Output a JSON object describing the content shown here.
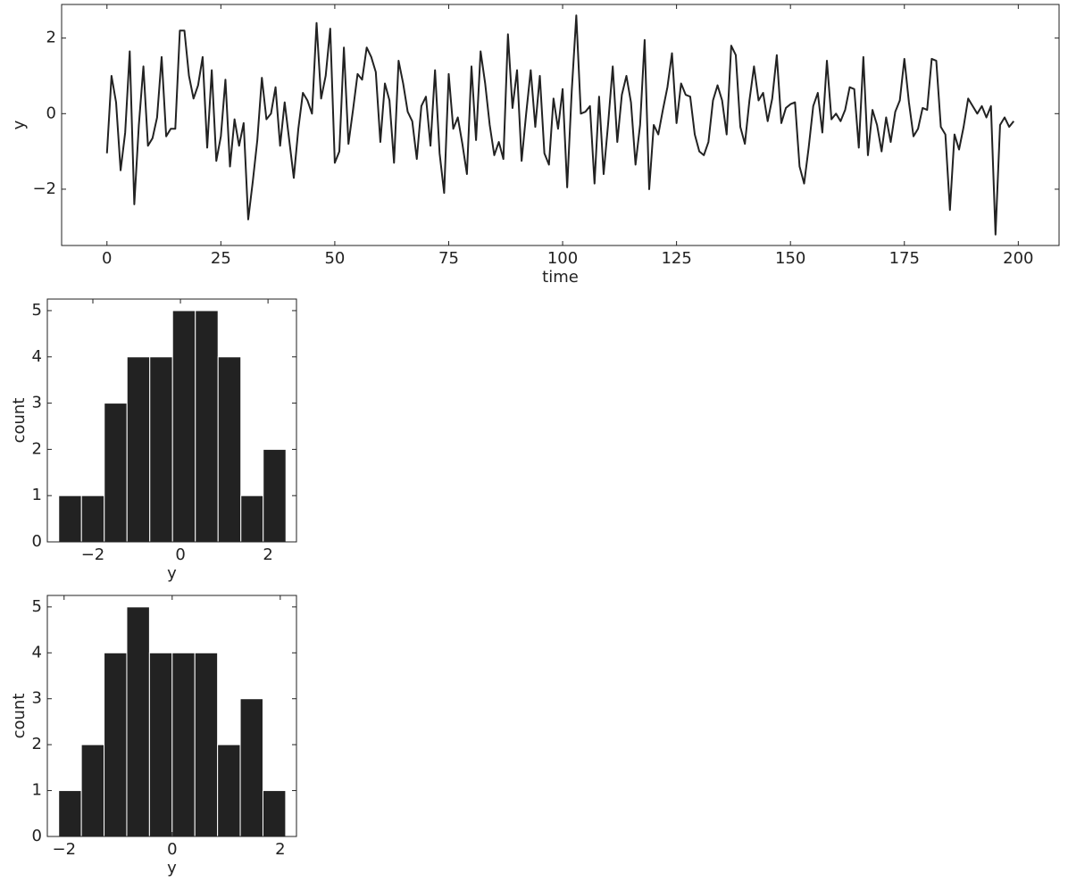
{
  "chart_data": [
    {
      "type": "line",
      "xlabel": "time",
      "ylabel": "y",
      "color": "#222222",
      "x": [
        0,
        1,
        2,
        3,
        4,
        5,
        6,
        7,
        8,
        9,
        10,
        11,
        12,
        13,
        14,
        15,
        16,
        17,
        18,
        19,
        20,
        21,
        22,
        23,
        24,
        25,
        26,
        27,
        28,
        29,
        30,
        31,
        32,
        33,
        34,
        35,
        36,
        37,
        38,
        39,
        40,
        41,
        42,
        43,
        44,
        45,
        46,
        47,
        48,
        49,
        50,
        51,
        52,
        53,
        54,
        55,
        56,
        57,
        58,
        59,
        60,
        61,
        62,
        63,
        64,
        65,
        66,
        67,
        68,
        69,
        70,
        71,
        72,
        73,
        74,
        75,
        76,
        77,
        78,
        79,
        80,
        81,
        82,
        83,
        84,
        85,
        86,
        87,
        88,
        89,
        90,
        91,
        92,
        93,
        94,
        95,
        96,
        97,
        98,
        99,
        100,
        101,
        102,
        103,
        104,
        105,
        106,
        107,
        108,
        109,
        110,
        111,
        112,
        113,
        114,
        115,
        116,
        117,
        118,
        119,
        120,
        121,
        122,
        123,
        124,
        125,
        126,
        127,
        128,
        129,
        130,
        131,
        132,
        133,
        134,
        135,
        136,
        137,
        138,
        139,
        140,
        141,
        142,
        143,
        144,
        145,
        146,
        147,
        148,
        149,
        150,
        151,
        152,
        153,
        154,
        155,
        156,
        157,
        158,
        159,
        160,
        161,
        162,
        163,
        164,
        165,
        166,
        167,
        168,
        169,
        170,
        171,
        172,
        173,
        174,
        175,
        176,
        177,
        178,
        179,
        180,
        181,
        182,
        183,
        184,
        185,
        186,
        187,
        188,
        189,
        190,
        191,
        192,
        193,
        194,
        195,
        196,
        197,
        198,
        199
      ],
      "values": [
        -1.05,
        1.0,
        0.3,
        -1.5,
        -0.5,
        1.65,
        -2.4,
        -0.3,
        1.25,
        -0.85,
        -0.65,
        -0.1,
        1.5,
        -0.6,
        -0.4,
        -0.4,
        2.2,
        2.2,
        1.0,
        0.4,
        0.75,
        1.5,
        -0.9,
        1.15,
        -1.25,
        -0.6,
        0.9,
        -1.4,
        -0.15,
        -0.85,
        -0.25,
        -2.8,
        -1.8,
        -0.7,
        0.95,
        -0.15,
        0.0,
        0.7,
        -0.85,
        0.3,
        -0.7,
        -1.7,
        -0.4,
        0.55,
        0.35,
        0.0,
        2.4,
        0.4,
        1.0,
        2.25,
        -1.3,
        -1.0,
        1.75,
        -0.8,
        0.1,
        1.05,
        0.9,
        1.75,
        1.5,
        1.1,
        -0.75,
        0.8,
        0.35,
        -1.3,
        1.4,
        0.8,
        0.05,
        -0.2,
        -1.2,
        0.2,
        0.45,
        -0.85,
        1.15,
        -1.05,
        -2.1,
        1.05,
        -0.4,
        -0.1,
        -0.8,
        -1.6,
        1.25,
        -0.7,
        1.65,
        0.8,
        -0.3,
        -1.1,
        -0.75,
        -1.2,
        2.1,
        0.15,
        1.15,
        -1.25,
        0.0,
        1.15,
        -0.35,
        1.0,
        -1.05,
        -1.35,
        0.4,
        -0.4,
        0.65,
        -1.95,
        0.6,
        2.6,
        0.0,
        0.05,
        0.2,
        -1.85,
        0.45,
        -1.6,
        -0.25,
        1.25,
        -0.75,
        0.5,
        1.0,
        0.3,
        -1.35,
        -0.3,
        1.95,
        -2.0,
        -0.3,
        -0.55,
        0.1,
        0.7,
        1.6,
        -0.25,
        0.8,
        0.5,
        0.45,
        -0.55,
        -1.0,
        -1.1,
        -0.75,
        0.35,
        0.75,
        0.35,
        -0.55,
        1.8,
        1.55,
        -0.35,
        -0.8,
        0.35,
        1.25,
        0.35,
        0.55,
        -0.2,
        0.4,
        1.55,
        -0.25,
        0.15,
        0.25,
        0.3,
        -1.4,
        -1.85,
        -0.9,
        0.2,
        0.55,
        -0.5,
        1.4,
        -0.15,
        0.0,
        -0.2,
        0.1,
        0.7,
        0.65,
        -0.9,
        1.5,
        -1.1,
        0.1,
        -0.3,
        -1.0,
        -0.1,
        -0.75,
        0.05,
        0.35,
        1.45,
        0.3,
        -0.6,
        -0.4,
        0.15,
        0.1,
        1.45,
        1.4,
        -0.35,
        -0.55,
        -2.55,
        -0.55,
        -0.95,
        -0.35,
        0.4,
        0.2,
        0.0,
        0.2,
        -0.1,
        0.2,
        -3.2,
        -0.3,
        -0.1,
        -0.35,
        -0.2
      ],
      "xlim": [
        -9.95,
        208.95
      ],
      "ylim": [
        -3.49,
        2.89
      ],
      "xticks": [
        0,
        25,
        50,
        75,
        100,
        125,
        150,
        175,
        200
      ],
      "yticks": [
        {
          "value": -2,
          "label": "−2"
        },
        0,
        2
      ]
    },
    {
      "type": "histogram",
      "xlabel": "y",
      "ylabel": "count",
      "color": "#222222",
      "bins": [
        -2.78,
        -2.26,
        -1.74,
        -1.22,
        -0.7,
        -0.18,
        0.34,
        0.86,
        1.38,
        1.89,
        2.41
      ],
      "values": [
        1,
        1,
        3,
        4,
        4,
        5,
        5,
        4,
        1,
        2
      ],
      "xlim": [
        -3.04,
        2.65
      ],
      "ylim": [
        0,
        5.25
      ],
      "xticks": [
        {
          "value": -2,
          "label": "−2"
        },
        0,
        2
      ],
      "yticks": [
        0,
        1,
        2,
        3,
        4,
        5
      ]
    },
    {
      "type": "histogram",
      "xlabel": "y",
      "ylabel": "count",
      "color": "#222222",
      "bins": [
        -2.1,
        -1.68,
        -1.26,
        -0.84,
        -0.42,
        0.0,
        0.42,
        0.84,
        1.26,
        1.68,
        2.1
      ],
      "values": [
        1,
        2,
        4,
        5,
        4,
        4,
        4,
        2,
        3,
        1
      ],
      "xlim": [
        -2.31,
        2.3
      ],
      "ylim": [
        0,
        5.25
      ],
      "xticks": [
        {
          "value": -2,
          "label": "−2"
        },
        0,
        2
      ],
      "yticks": [
        0,
        1,
        2,
        3,
        4,
        5
      ]
    }
  ]
}
